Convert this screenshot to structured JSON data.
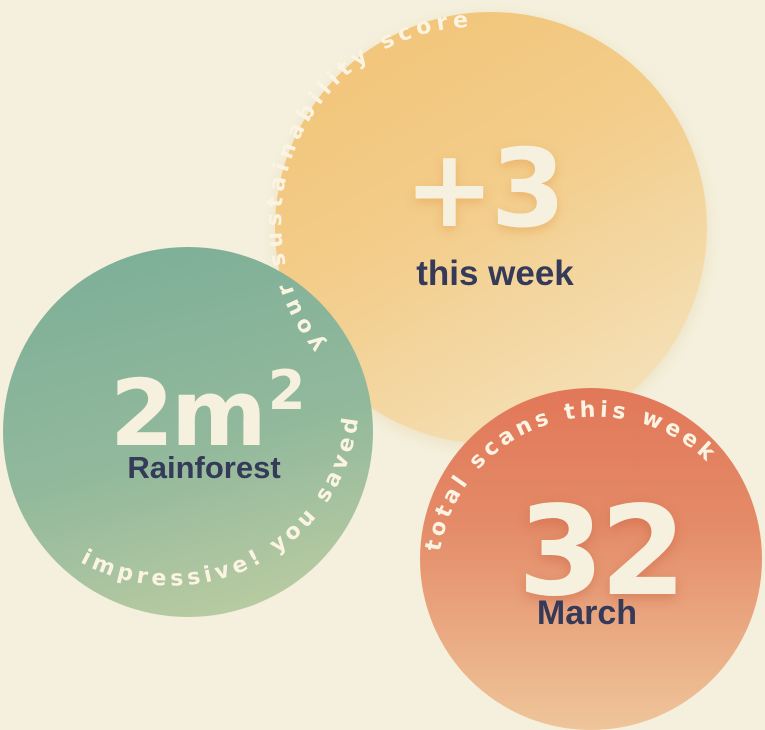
{
  "score": {
    "arc_text": "your sustainability score",
    "value": "+3",
    "label": "this week",
    "color": "#f2c274"
  },
  "rainforest": {
    "arc_text": "impressive! you saved",
    "value": "2m",
    "value_sup": "2",
    "label": "Rainforest",
    "color": "#7aae97"
  },
  "scans": {
    "arc_text": "total scans this week",
    "value": "32",
    "label": "March",
    "color": "#e17758"
  },
  "colors": {
    "background": "#f4f0dd",
    "label_text": "#343a58",
    "value_text": "#f6f0de"
  }
}
